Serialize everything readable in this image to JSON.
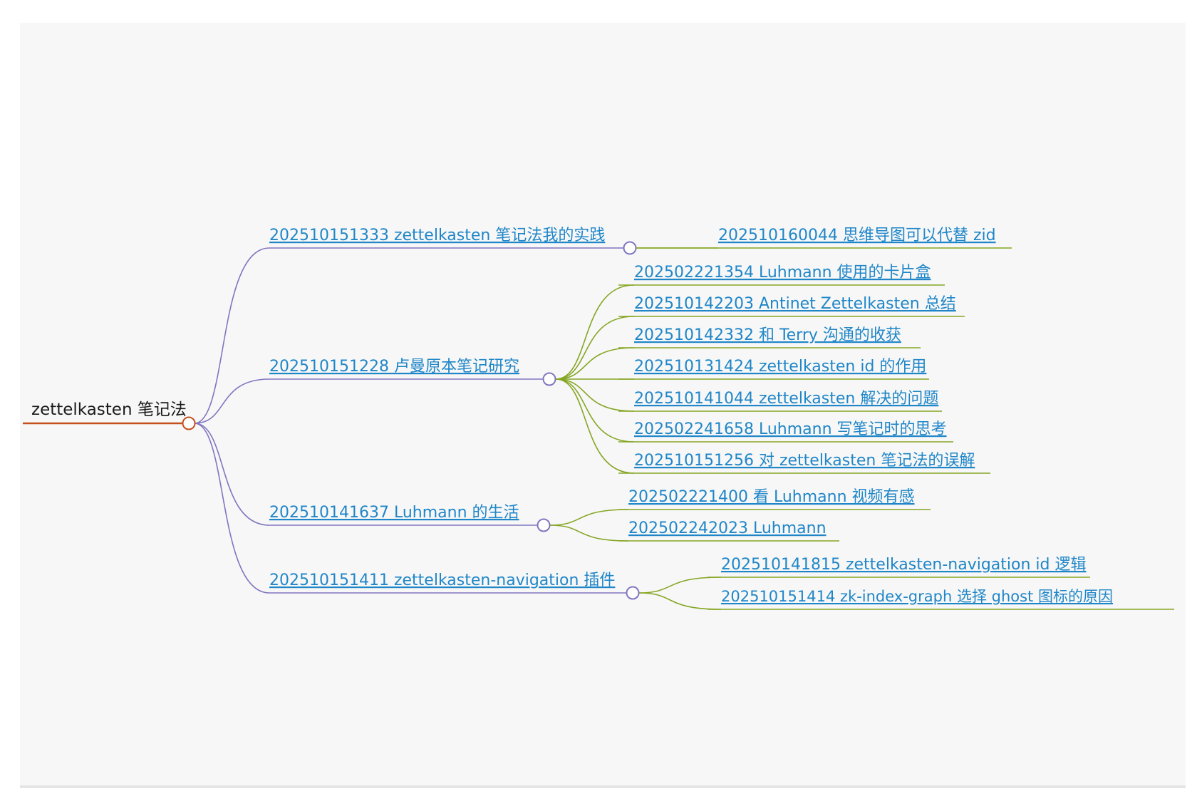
{
  "colors": {
    "root_line": "#c4501e",
    "level1_line": "#8076c0",
    "level2_line": "#85a623",
    "link_text": "#1f86c8",
    "root_text": "#1b1b1b",
    "canvas_bg": "#f7f7f7"
  },
  "mindmap": {
    "root": {
      "label": "zettelkasten 笔记法",
      "children": [
        {
          "label": "202510151333 zettelkasten 笔记法我的实践",
          "children": [
            {
              "label": "202510160044 思维导图可以代替 zid"
            }
          ]
        },
        {
          "label": "202510151228 卢曼原本笔记研究",
          "children": [
            {
              "label": "202502221354 Luhmann 使用的卡片盒"
            },
            {
              "label": "202510142203 Antinet Zettelkasten 总结"
            },
            {
              "label": "202510142332 和 Terry 沟通的收获"
            },
            {
              "label": "202510131424 zettelkasten id 的作用"
            },
            {
              "label": "202510141044 zettelkasten 解决的问题"
            },
            {
              "label": "202502241658 Luhmann 写笔记时的思考"
            },
            {
              "label": "202510151256 对 zettelkasten 笔记法的误解"
            }
          ]
        },
        {
          "label": "202510141637 Luhmann 的生活",
          "children": [
            {
              "label": "202502221400 看 Luhmann 视频有感"
            },
            {
              "label": "202502242023 Luhmann"
            }
          ]
        },
        {
          "label": "202510151411 zettelkasten-navigation 插件",
          "children": [
            {
              "label": "202510141815 zettelkasten-navigation id 逻辑"
            },
            {
              "label": "202510151414 zk-index-graph 选择 ghost 图标的原因"
            }
          ]
        }
      ]
    }
  }
}
